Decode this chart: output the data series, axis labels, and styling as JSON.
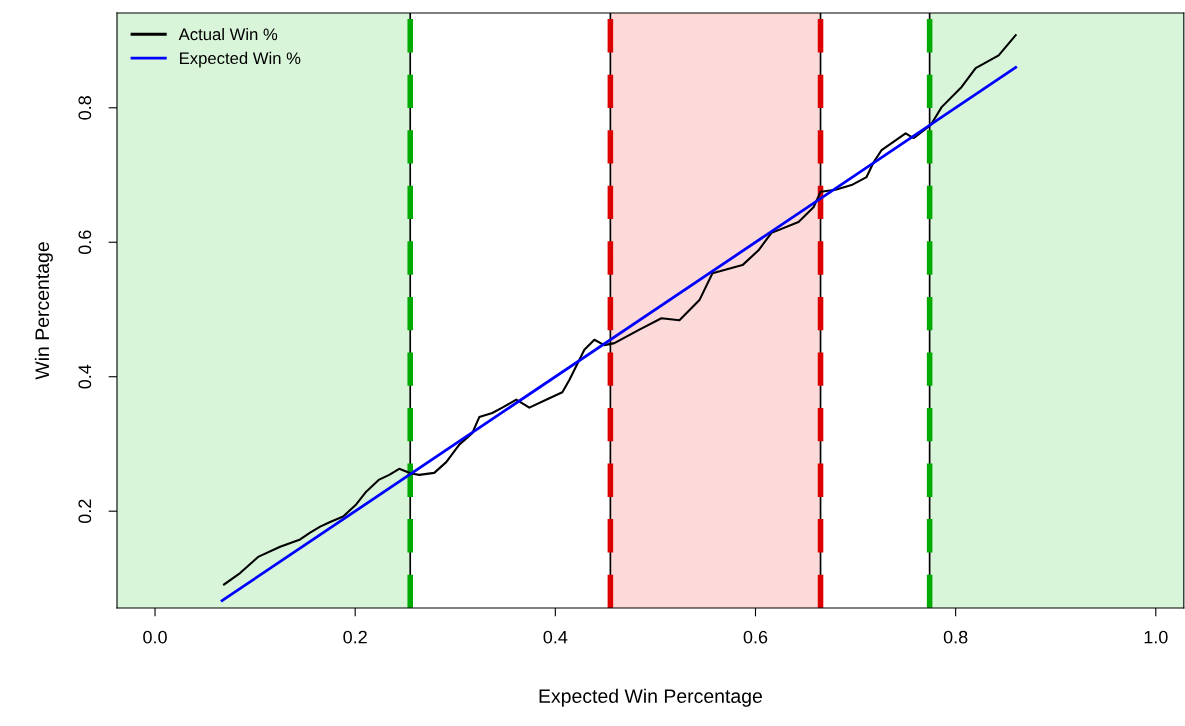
{
  "chart_data": {
    "type": "line",
    "xlabel": "Expected Win Percentage",
    "ylabel": "Win Percentage",
    "xlim": [
      -0.038,
      1.028
    ],
    "ylim": [
      0.056,
      0.941
    ],
    "xticks": [
      {
        "value": 0,
        "label": "0.0"
      },
      0.2,
      0.4,
      0.6,
      0.8,
      {
        "value": 1,
        "label": "1.0"
      }
    ],
    "yticks": [
      0.2,
      0.4,
      0.6,
      0.8
    ],
    "grid": false,
    "legend": "top left",
    "line_style": "solid",
    "marker": "none",
    "bands": [
      {
        "axis": "x",
        "from": -0.038,
        "to": 0.255,
        "color": "#d9f5d9"
      },
      {
        "axis": "x",
        "from": 0.455,
        "to": 0.665,
        "color": "#fddada"
      },
      {
        "axis": "x",
        "from": 0.774,
        "to": 1.028,
        "color": "#d9f5d9"
      }
    ],
    "ref_lines": [
      {
        "axis": "x",
        "value": 0.255,
        "color": "#00aa00",
        "line_style": "dashed"
      },
      {
        "axis": "x",
        "value": 0.455,
        "color": "#dd0000",
        "line_style": "dashed"
      },
      {
        "axis": "x",
        "value": 0.665,
        "color": "#dd0000",
        "line_style": "dashed"
      },
      {
        "axis": "x",
        "value": 0.774,
        "color": "#00aa00",
        "line_style": "dashed"
      }
    ],
    "series": [
      {
        "name": "Actual Win %",
        "color": "#000000",
        "x": [
          0.069,
          0.085,
          0.103,
          0.125,
          0.145,
          0.155,
          0.165,
          0.175,
          0.188,
          0.201,
          0.211,
          0.224,
          0.234,
          0.244,
          0.256,
          0.264,
          0.279,
          0.291,
          0.304,
          0.317,
          0.324,
          0.337,
          0.347,
          0.361,
          0.374,
          0.394,
          0.407,
          0.414,
          0.429,
          0.439,
          0.449,
          0.459,
          0.484,
          0.506,
          0.524,
          0.544,
          0.557,
          0.587,
          0.603,
          0.616,
          0.643,
          0.658,
          0.665,
          0.68,
          0.696,
          0.711,
          0.718,
          0.726,
          0.75,
          0.758,
          0.775,
          0.786,
          0.806,
          0.82,
          0.843,
          0.86
        ],
        "values": [
          0.091,
          0.108,
          0.132,
          0.147,
          0.158,
          0.168,
          0.177,
          0.184,
          0.192,
          0.21,
          0.229,
          0.247,
          0.254,
          0.263,
          0.256,
          0.254,
          0.257,
          0.273,
          0.299,
          0.316,
          0.34,
          0.346,
          0.354,
          0.366,
          0.354,
          0.368,
          0.377,
          0.395,
          0.44,
          0.455,
          0.447,
          0.45,
          0.47,
          0.487,
          0.484,
          0.514,
          0.554,
          0.566,
          0.588,
          0.614,
          0.63,
          0.652,
          0.675,
          0.678,
          0.685,
          0.697,
          0.719,
          0.737,
          0.762,
          0.755,
          0.774,
          0.801,
          0.831,
          0.859,
          0.878,
          0.908
        ]
      },
      {
        "name": "Expected Win %",
        "color": "#0000ff",
        "x": [
          0.067,
          0.86
        ],
        "values": [
          0.067,
          0.86
        ]
      }
    ]
  }
}
